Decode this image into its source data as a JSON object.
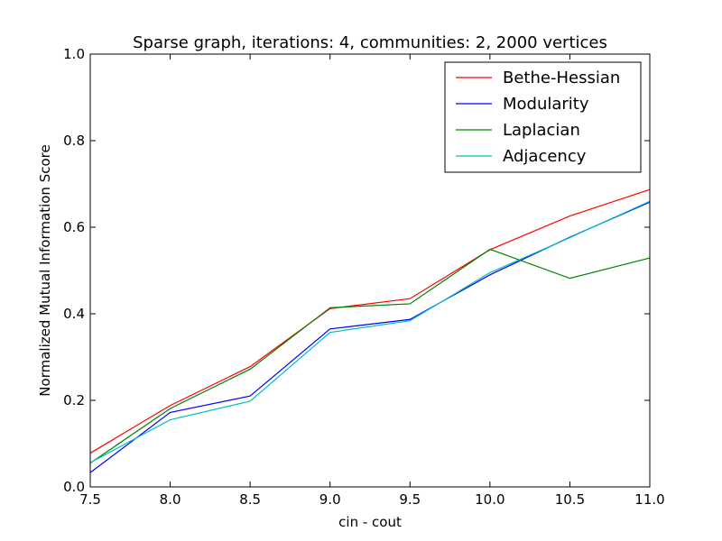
{
  "chart_data": {
    "type": "line",
    "title": "Sparse graph, iterations: 4, communities: 2, 2000 vertices",
    "xlabel": "cin - cout",
    "ylabel": "Normalized Mutual Information Score",
    "xlim": [
      7.5,
      11.0
    ],
    "ylim": [
      0.0,
      1.0
    ],
    "xticks": [
      "7.5",
      "8.0",
      "8.5",
      "9.0",
      "9.5",
      "10.0",
      "10.5",
      "11.0"
    ],
    "yticks": [
      "0.0",
      "0.2",
      "0.4",
      "0.6",
      "0.8",
      "1.0"
    ],
    "grid": false,
    "legend_position": "top-right",
    "x": [
      7.5,
      8.0,
      8.5,
      9.0,
      9.5,
      10.0,
      10.5,
      11.0
    ],
    "series": [
      {
        "name": "Bethe-Hessian",
        "color": "#ff0000",
        "values": [
          0.078,
          0.188,
          0.278,
          0.412,
          0.435,
          0.548,
          0.626,
          0.687
        ]
      },
      {
        "name": "Modularity",
        "color": "#0000ff",
        "values": [
          0.033,
          0.172,
          0.21,
          0.365,
          0.387,
          0.49,
          0.577,
          0.658
        ]
      },
      {
        "name": "Laplacian",
        "color": "#008000",
        "values": [
          0.055,
          0.181,
          0.272,
          0.414,
          0.423,
          0.549,
          0.482,
          0.529
        ]
      },
      {
        "name": "Adjacency",
        "color": "#00bfbf",
        "values": [
          0.056,
          0.155,
          0.198,
          0.357,
          0.384,
          0.495,
          0.576,
          0.66
        ]
      }
    ]
  }
}
